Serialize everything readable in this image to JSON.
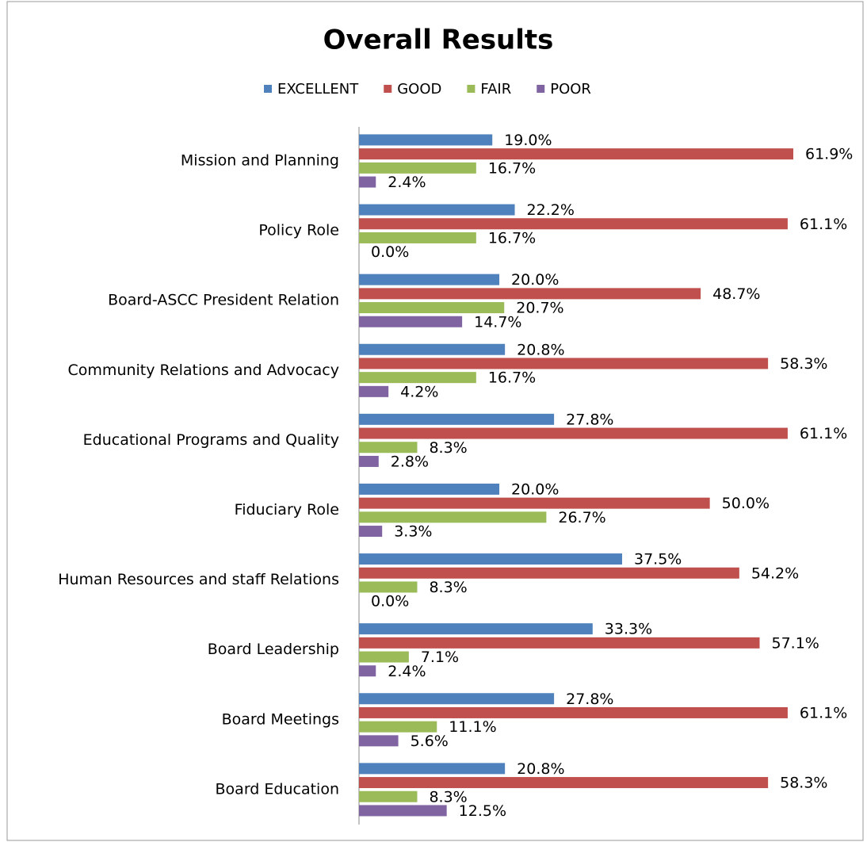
{
  "chart_data": {
    "type": "bar",
    "orientation": "horizontal",
    "title": "Overall Results",
    "categories": [
      "Mission and Planning",
      "Policy Role",
      "Board-ASCC President Relation",
      "Community Relations and Advocacy",
      "Educational Programs and Quality",
      "Fiduciary Role",
      "Human Resources and staff Relations",
      "Board Leadership",
      "Board Meetings",
      "Board Education"
    ],
    "series": [
      {
        "name": "EXCELLENT",
        "color": "#4f81bd",
        "values": [
          19.0,
          22.2,
          20.0,
          20.8,
          27.8,
          20.0,
          37.5,
          33.3,
          27.8,
          20.8
        ],
        "value_labels": [
          "19.0%",
          "22.2%",
          "20.0%",
          "20.8%",
          "27.8%",
          "20.0%",
          "37.5%",
          "33.3%",
          "27.8%",
          "20.8%"
        ]
      },
      {
        "name": "GOOD",
        "color": "#c0504d",
        "values": [
          61.9,
          61.1,
          48.7,
          58.3,
          61.1,
          50.0,
          54.2,
          57.1,
          61.1,
          58.3
        ],
        "value_labels": [
          "61.9%",
          "61.1%",
          "48.7%",
          "58.3%",
          "61.1%",
          "50.0%",
          "54.2%",
          "57.1%",
          "61.1%",
          "58.3%"
        ]
      },
      {
        "name": "FAIR",
        "color": "#9bbb59",
        "values": [
          16.7,
          16.7,
          20.7,
          16.7,
          8.3,
          26.7,
          8.3,
          7.1,
          11.1,
          8.3
        ],
        "value_labels": [
          "16.7%",
          "16.7%",
          "20.7%",
          "16.7%",
          "8.3%",
          "26.7%",
          "8.3%",
          "7.1%",
          "11.1%",
          "8.3%"
        ]
      },
      {
        "name": "POOR",
        "color": "#8064a2",
        "values": [
          2.4,
          0.0,
          14.7,
          4.2,
          2.8,
          3.3,
          0.0,
          2.4,
          5.6,
          12.5
        ],
        "value_labels": [
          "2.4%",
          "0.0%",
          "14.7%",
          "4.2%",
          "2.8%",
          "3.3%",
          "0.0%",
          "2.4%",
          "5.6%",
          "12.5%"
        ]
      }
    ],
    "legend": "top"
  }
}
